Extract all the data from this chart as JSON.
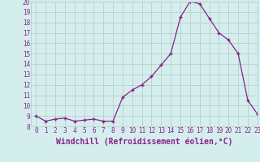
{
  "x": [
    0,
    1,
    2,
    3,
    4,
    5,
    6,
    7,
    8,
    9,
    10,
    11,
    12,
    13,
    14,
    15,
    16,
    17,
    18,
    19,
    20,
    21,
    22,
    23
  ],
  "y": [
    9.0,
    8.5,
    8.7,
    8.8,
    8.5,
    8.6,
    8.7,
    8.5,
    8.5,
    10.8,
    11.5,
    12.0,
    12.8,
    13.9,
    15.0,
    18.5,
    20.0,
    19.8,
    18.4,
    17.0,
    16.3,
    15.0,
    10.5,
    9.2
  ],
  "line_color": "#882288",
  "marker": "+",
  "xlabel": "Windchill (Refroidissement éolien,°C)",
  "ylim": [
    8,
    20
  ],
  "xlim": [
    -0.5,
    23
  ],
  "yticks": [
    8,
    9,
    10,
    11,
    12,
    13,
    14,
    15,
    16,
    17,
    18,
    19,
    20
  ],
  "xticks": [
    0,
    1,
    2,
    3,
    4,
    5,
    6,
    7,
    8,
    9,
    10,
    11,
    12,
    13,
    14,
    15,
    16,
    17,
    18,
    19,
    20,
    21,
    22,
    23
  ],
  "bg_color": "#d4eeee",
  "grid_color": "#bbcccc",
  "tick_label_fontsize": 5.5,
  "xlabel_fontsize": 7
}
